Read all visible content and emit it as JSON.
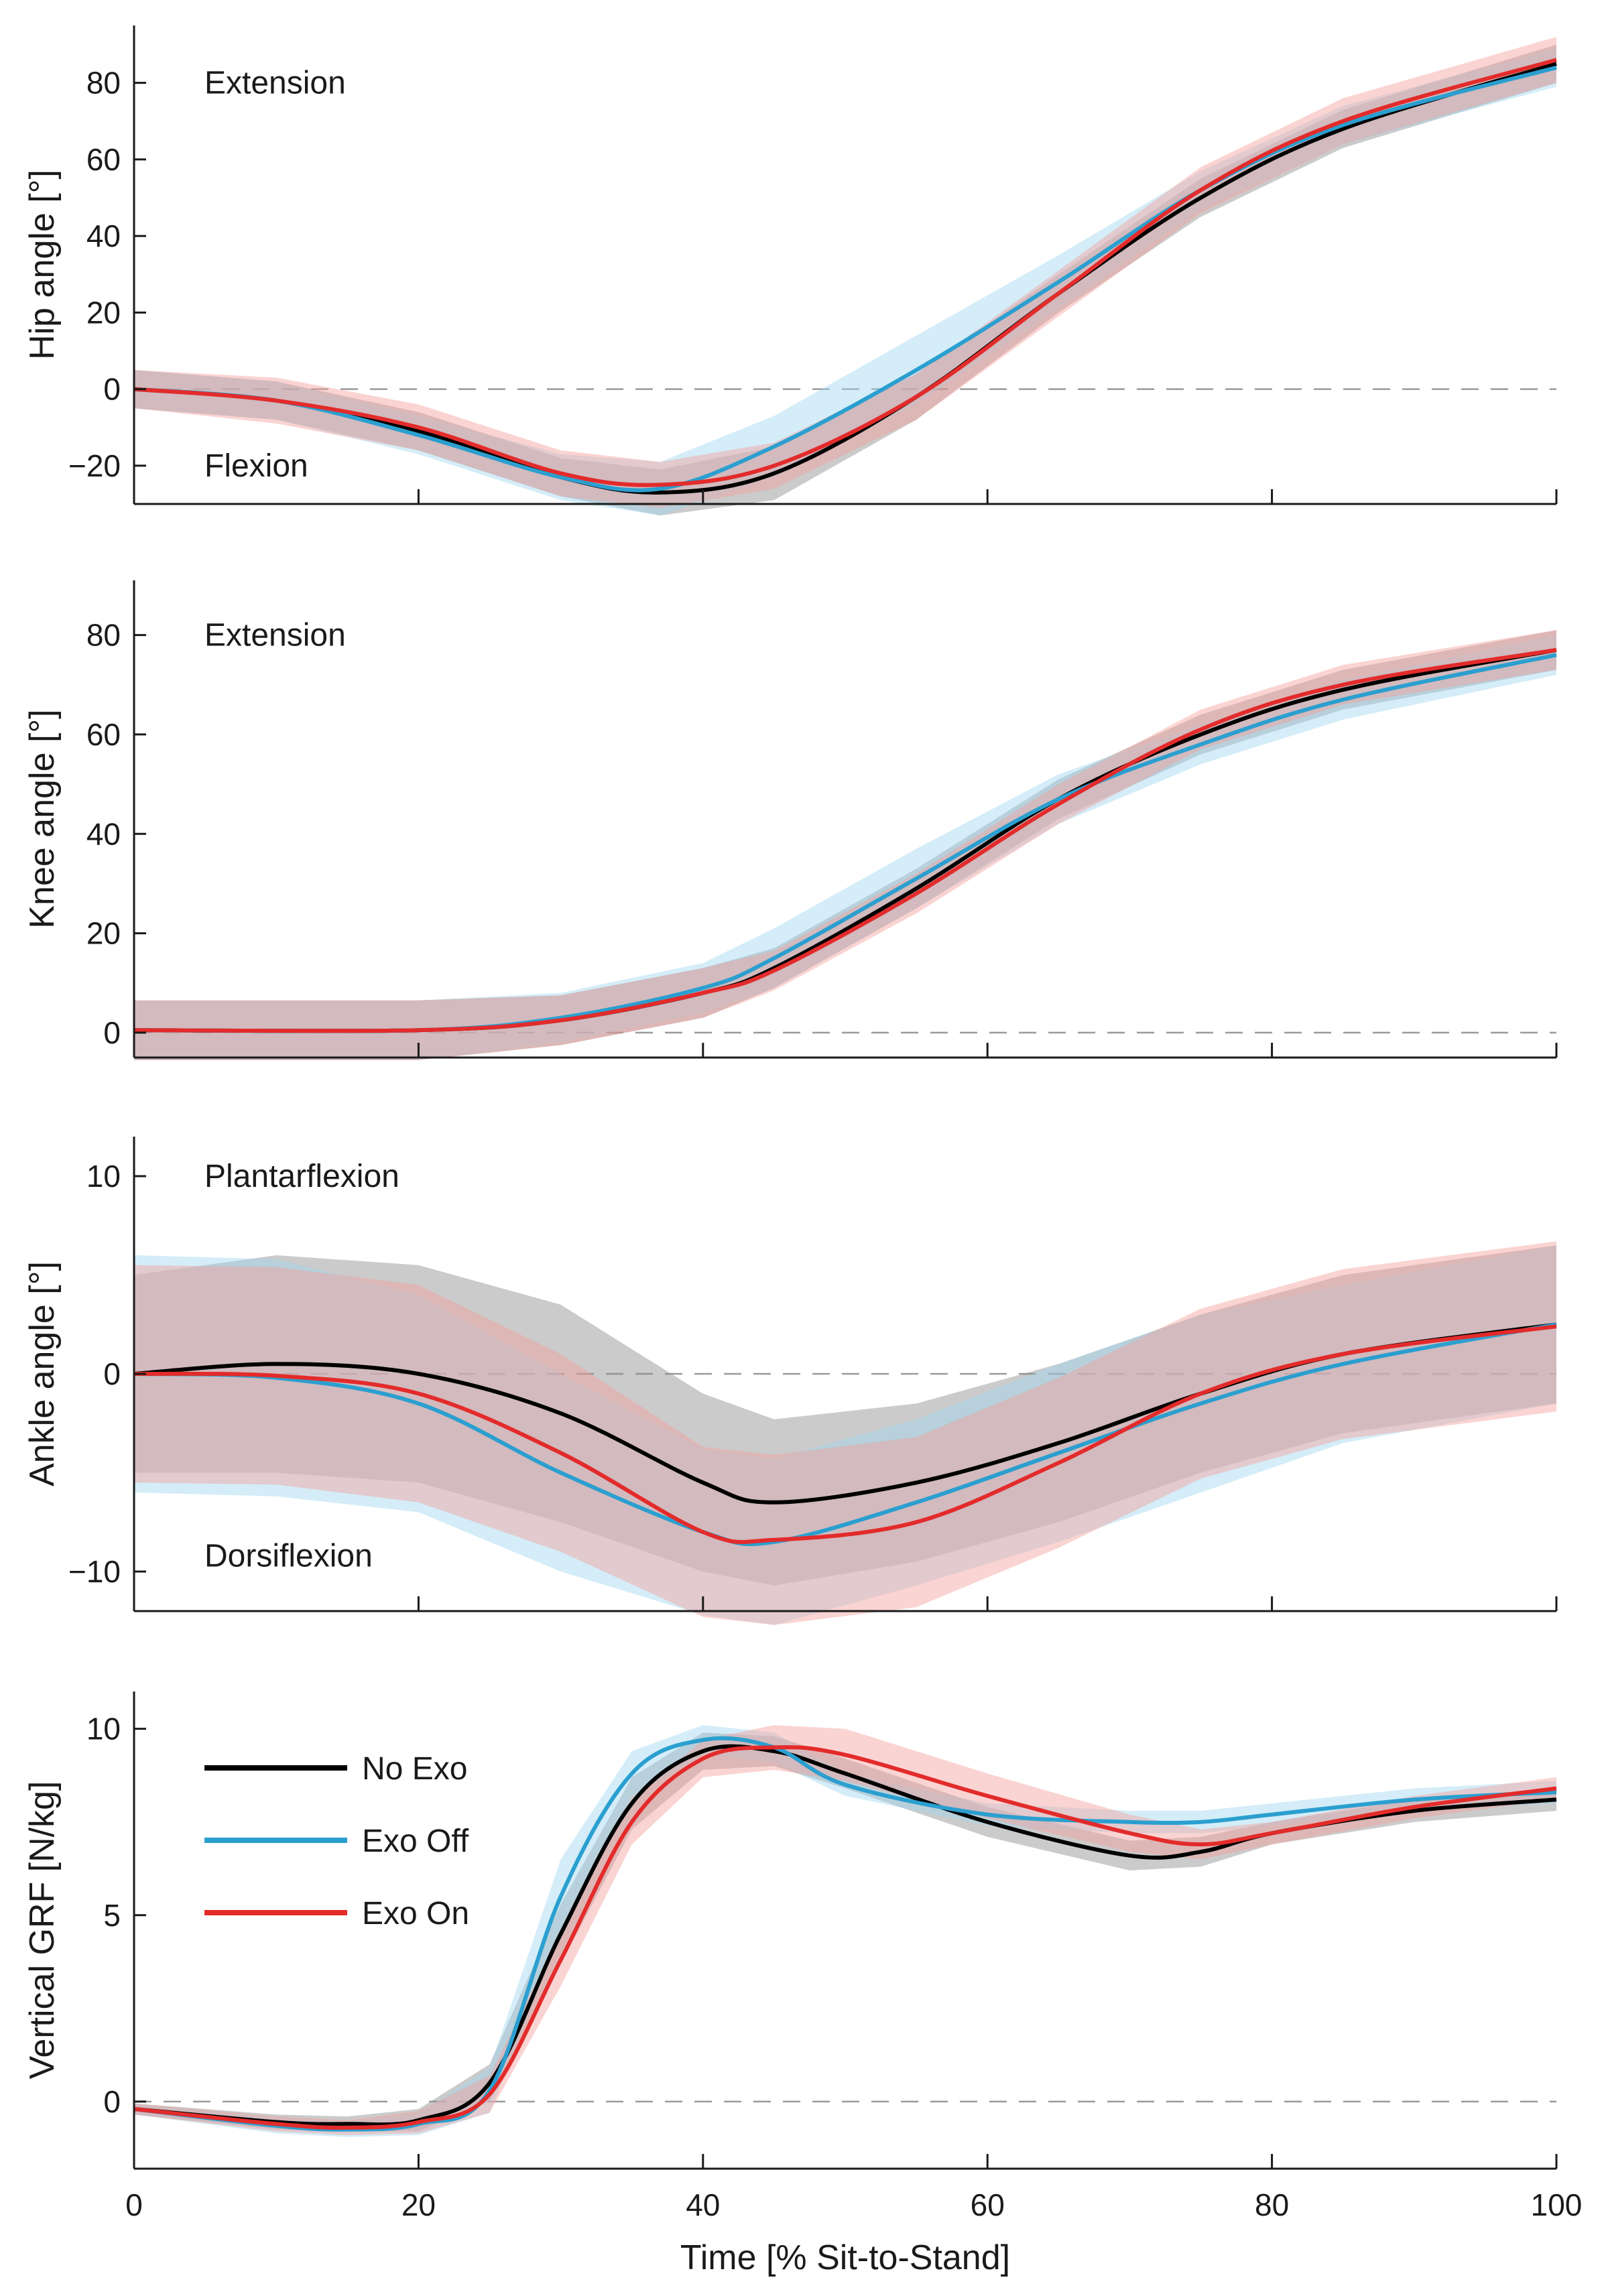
{
  "colors": {
    "No Exo": "#000000",
    "Exo Off": "#2b9fcf",
    "Exo On": "#e32b2b",
    "band_No Exo": "#8c8c8c",
    "band_Exo Off": "#9fd6ef",
    "band_Exo On": "#f4a09c"
  },
  "legend": {
    "placement": "upper-left of bottom panel",
    "entries": [
      "No Exo",
      "Exo Off",
      "Exo On"
    ]
  },
  "chart_data": [
    {
      "type": "line",
      "ylabel": "Hip angle [°]",
      "ylim": [
        -30,
        95
      ],
      "yticks": [
        -20,
        0,
        20,
        40,
        60,
        80
      ],
      "xlim": [
        0,
        100
      ],
      "xticks": [
        20,
        40,
        60,
        80,
        100
      ],
      "zero_line": true,
      "annotations": [
        {
          "text": "Extension",
          "x": 5,
          "y": 80
        },
        {
          "text": "Flexion",
          "x": 5,
          "y": -20
        }
      ],
      "x": [
        0,
        10,
        20,
        30,
        37,
        45,
        55,
        65,
        75,
        85,
        100
      ],
      "series": [
        {
          "name": "No Exo",
          "values": [
            0,
            -3,
            -11,
            -23,
            -27,
            -22,
            -2,
            25,
            50,
            68,
            85
          ],
          "band": [
            5,
            5,
            5,
            5,
            6,
            7,
            6,
            5,
            5,
            5,
            5
          ]
        },
        {
          "name": "Exo Off",
          "values": [
            0,
            -3,
            -12,
            -23,
            -26,
            -15,
            5,
            28,
            52,
            69,
            84
          ],
          "band": [
            5,
            5,
            5,
            6,
            7,
            8,
            9,
            7,
            5,
            5,
            5
          ]
        },
        {
          "name": "Exo On",
          "values": [
            0,
            -3,
            -10,
            -22,
            -25,
            -20,
            -2,
            25,
            52,
            70,
            86
          ],
          "band": [
            5,
            6,
            6,
            6,
            6,
            6,
            6,
            6,
            6,
            6,
            6
          ]
        }
      ]
    },
    {
      "type": "line",
      "ylabel": "Knee angle [°]",
      "ylim": [
        -5,
        91
      ],
      "yticks": [
        0,
        20,
        40,
        60,
        80
      ],
      "xlim": [
        0,
        100
      ],
      "xticks": [
        20,
        40,
        60,
        80,
        100
      ],
      "zero_line": true,
      "annotations": [
        {
          "text": "Extension",
          "x": 5,
          "y": 80
        }
      ],
      "x": [
        0,
        20,
        30,
        40,
        45,
        55,
        65,
        75,
        85,
        100
      ],
      "series": [
        {
          "name": "No Exo",
          "values": [
            0.5,
            0.5,
            2.5,
            8,
            13,
            29,
            47,
            60,
            69,
            77
          ],
          "band": [
            6,
            6,
            5,
            5,
            4,
            4,
            4,
            4,
            4,
            4
          ]
        },
        {
          "name": "Exo Off",
          "values": [
            0.5,
            0.5,
            3,
            9,
            15,
            31,
            47,
            58,
            67,
            76
          ],
          "band": [
            6,
            6,
            5,
            5,
            6,
            6,
            5,
            4,
            4,
            4
          ]
        },
        {
          "name": "Exo On",
          "values": [
            0.5,
            0.5,
            2.5,
            8,
            12.5,
            28,
            46,
            61,
            70,
            77
          ],
          "band": [
            6,
            6,
            5,
            5,
            4,
            4,
            4,
            4,
            4,
            4
          ]
        }
      ]
    },
    {
      "type": "line",
      "ylabel": "Ankle angle [°]",
      "ylim": [
        -12,
        12
      ],
      "yticks": [
        -10,
        0,
        10
      ],
      "xlim": [
        0,
        100
      ],
      "xticks": [
        20,
        40,
        60,
        80,
        100
      ],
      "zero_line": true,
      "annotations": [
        {
          "text": "Plantarflexion",
          "x": 5,
          "y": 10
        },
        {
          "text": "Dorsiflexion",
          "x": 5,
          "y": -9.2
        }
      ],
      "x": [
        0,
        10,
        20,
        30,
        40,
        45,
        55,
        65,
        75,
        85,
        100
      ],
      "series": [
        {
          "name": "No Exo",
          "values": [
            0,
            0.5,
            0,
            -2,
            -5.5,
            -6.5,
            -5.5,
            -3.5,
            -1,
            1,
            2.5
          ],
          "band": [
            5,
            5.5,
            5.5,
            5.5,
            4.5,
            4.2,
            4,
            4,
            4,
            4,
            4
          ]
        },
        {
          "name": "Exo Off",
          "values": [
            0,
            -0.2,
            -1.5,
            -5,
            -8,
            -8.5,
            -6.5,
            -4,
            -1.5,
            0.5,
            2.5
          ],
          "band": [
            6,
            6,
            5.5,
            5,
            4.2,
            4.2,
            4.2,
            4.5,
            4.5,
            4,
            4
          ]
        },
        {
          "name": "Exo On",
          "values": [
            0,
            -0.1,
            -1,
            -4,
            -8,
            -8.4,
            -7.5,
            -4.5,
            -1,
            1,
            2.4
          ],
          "band": [
            5.5,
            5.5,
            5.5,
            5,
            4.3,
            4.3,
            4.3,
            4.3,
            4.3,
            4.3,
            4.3
          ]
        }
      ]
    },
    {
      "type": "line",
      "ylabel": "Vertical GRF [N/kg]",
      "ylim": [
        -1.8,
        11
      ],
      "yticks": [
        0,
        5,
        10
      ],
      "xlim": [
        0,
        100
      ],
      "xticks": [
        0,
        20,
        40,
        60,
        80,
        100
      ],
      "xlabel": "Time [% Sit-to-Stand]",
      "zero_line": true,
      "x": [
        0,
        10,
        15,
        20,
        25,
        30,
        35,
        40,
        45,
        50,
        60,
        70,
        75,
        80,
        90,
        100
      ],
      "series": [
        {
          "name": "No Exo",
          "values": [
            -0.2,
            -0.55,
            -0.6,
            -0.5,
            0.5,
            4.5,
            8,
            9.4,
            9.4,
            8.8,
            7.5,
            6.6,
            6.7,
            7.2,
            7.8,
            8.1
          ],
          "band": [
            0.15,
            0.2,
            0.2,
            0.3,
            0.5,
            0.8,
            0.7,
            0.5,
            0.4,
            0.4,
            0.4,
            0.4,
            0.4,
            0.3,
            0.3,
            0.3
          ]
        },
        {
          "name": "Exo Off",
          "values": [
            -0.2,
            -0.65,
            -0.75,
            -0.6,
            0.3,
            5.5,
            8.8,
            9.7,
            9.5,
            8.5,
            7.7,
            7.5,
            7.5,
            7.7,
            8.1,
            8.3
          ],
          "band": [
            0.15,
            0.2,
            0.2,
            0.3,
            0.6,
            1,
            0.6,
            0.4,
            0.4,
            0.3,
            0.3,
            0.3,
            0.3,
            0.3,
            0.3,
            0.3
          ]
        },
        {
          "name": "Exo On",
          "values": [
            -0.2,
            -0.6,
            -0.7,
            -0.55,
            0.2,
            3.8,
            7.5,
            9.2,
            9.5,
            9.3,
            8.2,
            7.2,
            6.9,
            7.2,
            7.9,
            8.4
          ],
          "band": [
            0.15,
            0.2,
            0.2,
            0.3,
            0.5,
            0.7,
            0.6,
            0.5,
            0.6,
            0.7,
            0.6,
            0.5,
            0.4,
            0.3,
            0.3,
            0.3
          ]
        }
      ]
    }
  ]
}
